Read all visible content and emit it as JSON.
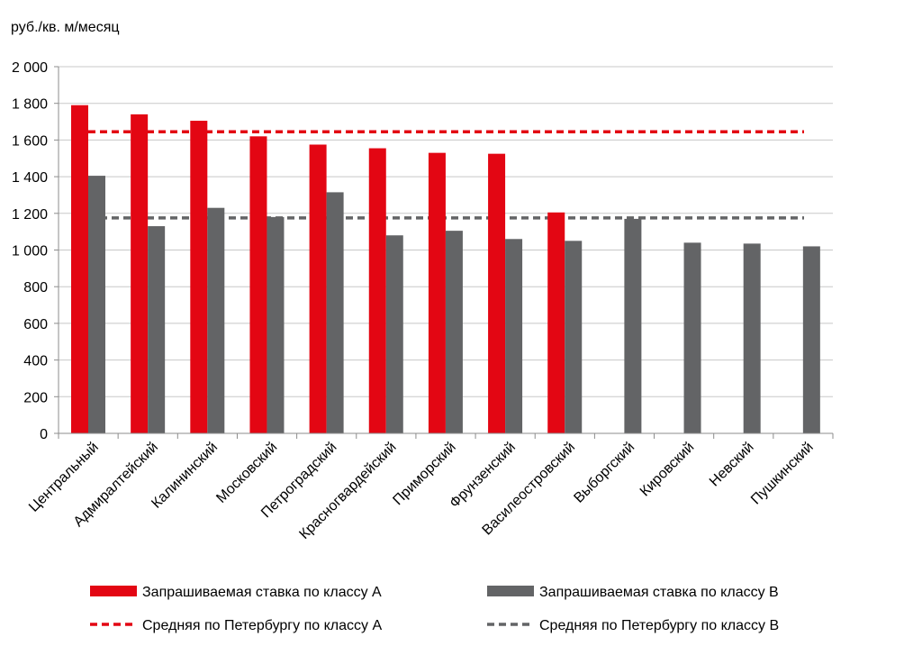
{
  "chart_data": {
    "type": "bar",
    "ylabel": "руб./кв. м/месяц",
    "ylim": [
      0,
      2000
    ],
    "yticks": [
      0,
      200,
      400,
      600,
      800,
      1000,
      1200,
      1400,
      1600,
      1800,
      2000
    ],
    "ytick_labels": [
      "0",
      "200",
      "400",
      "600",
      "800",
      "1 000",
      "1 200",
      "1 400",
      "1 600",
      "1 800",
      "2 000"
    ],
    "grid": true,
    "legend_position": "bottom",
    "categories": [
      "Центральный",
      "Адмиралтейский",
      "Калининский",
      "Московский",
      "Петроградский",
      "Красногвардейский",
      "Приморский",
      "Фрунзенский",
      "Василеостровский",
      "Выборгский",
      "Кировский",
      "Невский",
      "Пушкинский"
    ],
    "series": [
      {
        "name": "Запрашиваемая ставка по классу А",
        "color": "#e30613",
        "values": [
          1790,
          1740,
          1705,
          1620,
          1575,
          1555,
          1530,
          1525,
          1205,
          null,
          null,
          null,
          null
        ]
      },
      {
        "name": "Запрашиваемая ставка по классу В",
        "color": "#636466",
        "values": [
          1405,
          1130,
          1230,
          1180,
          1315,
          1080,
          1105,
          1060,
          1050,
          1170,
          1040,
          1035,
          1020
        ]
      }
    ],
    "reference_lines": [
      {
        "name": "Средняя по Петербургу по классу А",
        "value": 1645,
        "color": "#e30613",
        "style": "dashed"
      },
      {
        "name": "Средняя по Петербургу по классу В",
        "value": 1175,
        "color": "#636466",
        "style": "dashed"
      }
    ]
  }
}
